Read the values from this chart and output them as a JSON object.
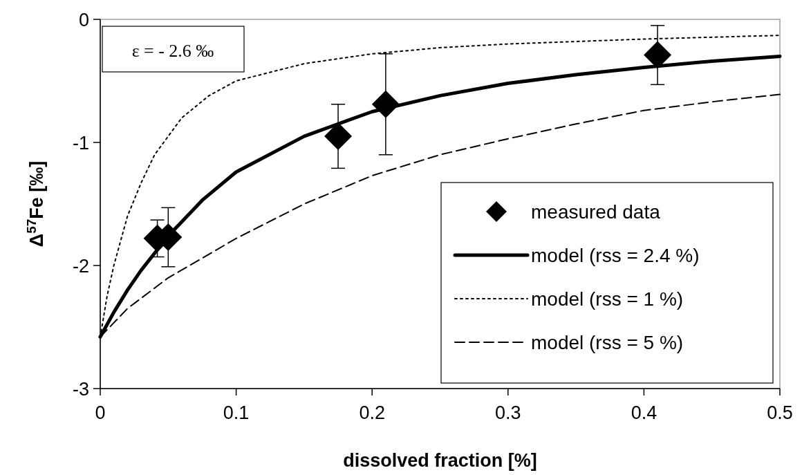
{
  "chart_data": {
    "type": "line",
    "xlabel": "dissolved fraction [%]",
    "ylabel": "Δ$^{57}$Fe [‰]",
    "xlim": [
      0,
      0.5
    ],
    "ylim": [
      -3,
      0
    ],
    "xticks": [
      0,
      0.1,
      0.2,
      0.3,
      0.4,
      0.5
    ],
    "yticks": [
      0,
      -1,
      -2,
      -3
    ],
    "grid": false,
    "legend": "bottom right",
    "annotations": [
      "ε = - 2.6 ‰"
    ],
    "series": [
      {
        "name": "measured data",
        "type": "scatter",
        "marker": "diamond",
        "color": "#000000",
        "x": [
          0.042,
          0.05,
          0.175,
          0.21,
          0.41
        ],
        "values": [
          -1.78,
          -1.77,
          -0.95,
          -0.69,
          -0.29
        ],
        "errors": [
          0.15,
          0.24,
          0.26,
          0.41,
          0.24
        ]
      },
      {
        "name": "model (rss = 2.4 %)",
        "line_style": "solid",
        "color": "#000000",
        "x": [
          0,
          0.01,
          0.02,
          0.03,
          0.05,
          0.075,
          0.1,
          0.15,
          0.2,
          0.25,
          0.3,
          0.35,
          0.4,
          0.45,
          0.5
        ],
        "values": [
          -2.58,
          -2.38,
          -2.2,
          -2.04,
          -1.76,
          -1.47,
          -1.24,
          -0.95,
          -0.75,
          -0.62,
          -0.52,
          -0.45,
          -0.39,
          -0.34,
          -0.3
        ]
      },
      {
        "name": "model (rss = 1 %)",
        "line_style": "dotted",
        "color": "#000000",
        "x": [
          0,
          0.005,
          0.01,
          0.02,
          0.03,
          0.04,
          0.06,
          0.08,
          0.1,
          0.15,
          0.2,
          0.25,
          0.3,
          0.4,
          0.5
        ],
        "values": [
          -2.58,
          -2.25,
          -2.0,
          -1.6,
          -1.33,
          -1.1,
          -0.8,
          -0.62,
          -0.5,
          -0.36,
          -0.28,
          -0.23,
          -0.2,
          -0.16,
          -0.13
        ]
      },
      {
        "name": "model (rss = 5 %)",
        "line_style": "dashed",
        "color": "#000000",
        "x": [
          0,
          0.02,
          0.05,
          0.1,
          0.15,
          0.2,
          0.25,
          0.3,
          0.35,
          0.4,
          0.45,
          0.5
        ],
        "values": [
          -2.58,
          -2.35,
          -2.1,
          -1.78,
          -1.5,
          -1.27,
          -1.1,
          -0.97,
          -0.85,
          -0.74,
          -0.67,
          -0.61
        ]
      }
    ]
  }
}
